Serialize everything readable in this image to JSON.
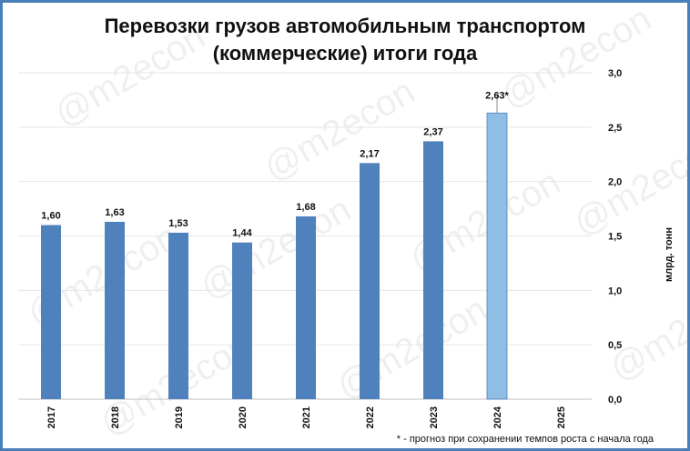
{
  "chart_data": {
    "type": "bar",
    "title_lines": [
      "Перевозки грузов автомобильным транспортом",
      "(коммерческие) итоги года"
    ],
    "categories": [
      "2017",
      "2018",
      "2019",
      "2020",
      "2021",
      "2022",
      "2023",
      "2024",
      "2025"
    ],
    "values": [
      1.6,
      1.63,
      1.53,
      1.44,
      1.68,
      2.17,
      2.37,
      2.63,
      null
    ],
    "data_labels": [
      "1,60",
      "1,63",
      "1,53",
      "1,44",
      "1,68",
      "2,17",
      "2,37",
      "2,63*",
      ""
    ],
    "forecast_index": 7,
    "ylabel": "млрд. тонн",
    "ylim": [
      0,
      3.0
    ],
    "yticks": [
      0,
      0.5,
      1.0,
      1.5,
      2.0,
      2.5,
      3.0
    ],
    "ytick_labels": [
      "0,0",
      "0,5",
      "1,0",
      "1,5",
      "2,0",
      "2,5",
      "3,0"
    ],
    "yaxis_position": "right",
    "grid": true,
    "footnote": "* - прогноз при сохранении темпов роста с начала года",
    "watermark": "@m2econ",
    "colors": {
      "bar": "#4f81bd",
      "forecast_bar": "#8ebde6",
      "frame": "#4a7ebb"
    }
  }
}
